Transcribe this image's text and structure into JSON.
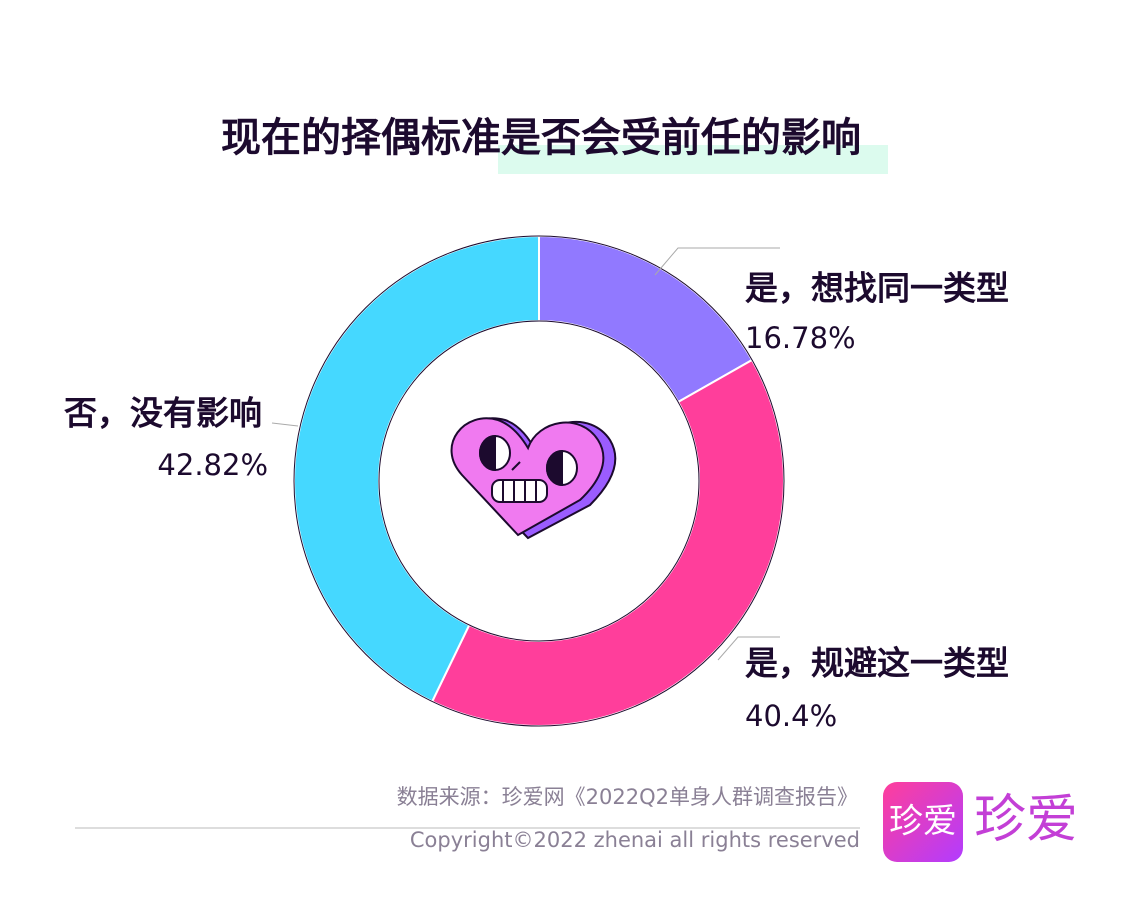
{
  "chart_data": {
    "type": "donut",
    "title": "现在的择偶标准是否会受前任的影响",
    "categories": [
      "是，想找同一类型",
      "是，规避这一类型",
      "否，没有影响"
    ],
    "values": [
      16.78,
      40.4,
      42.82
    ],
    "value_labels": [
      "16.78%",
      "40.4%",
      "42.82%"
    ],
    "colors": [
      "#9179ff",
      "#ff3e9b",
      "#45d8ff"
    ],
    "source": "数据来源：珍爱网《2022Q2单身人群调查报告》",
    "copyright": "Copyright©2022  zhenai  all rights reserved"
  },
  "brand": {
    "icon": "珍爱",
    "wordmark": "珍爱"
  }
}
